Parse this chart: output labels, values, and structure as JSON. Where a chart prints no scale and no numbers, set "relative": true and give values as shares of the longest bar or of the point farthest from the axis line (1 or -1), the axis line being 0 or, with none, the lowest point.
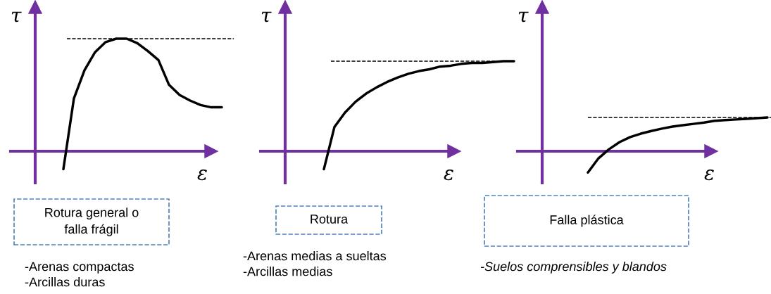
{
  "chart_data": [
    {
      "type": "line",
      "relative": true,
      "ylabel": "τ",
      "xlabel": "ε",
      "categories": [
        null,
        null,
        null,
        null,
        null,
        null,
        null,
        null,
        null,
        null,
        null,
        null,
        null,
        null,
        null,
        null
      ],
      "series": [
        {
          "color": "#000000",
          "values": [
            -0.16,
            0.47,
            0.72,
            0.88,
            0.97,
            1,
            1,
            0.96,
            0.89,
            0.81,
            0.59,
            0.5,
            0.45,
            0.41,
            0.39,
            0.39
          ]
        }
      ],
      "ref_lines": [
        {
          "axis": "y",
          "value": 1,
          "line_style": "dashed",
          "color": "#000000"
        },
        {
          "axis": "y",
          "value": 0,
          "line_style": "solid",
          "color": "#7030a0"
        }
      ],
      "annotations": [
        "Rotura general o\nfalla frágil",
        "-Arenas compactas\n-Arcillas duras"
      ]
    },
    {
      "type": "line",
      "relative": true,
      "ylabel": "τ",
      "xlabel": "ε",
      "categories": [
        null,
        null,
        null,
        null,
        null,
        null,
        null,
        null,
        null,
        null,
        null,
        null,
        null,
        null,
        null,
        null,
        null,
        null,
        null
      ],
      "series": [
        {
          "color": "#000000",
          "values": [
            -0.2,
            0.27,
            0.43,
            0.55,
            0.64,
            0.71,
            0.77,
            0.82,
            0.86,
            0.89,
            0.91,
            0.94,
            0.95,
            0.97,
            0.98,
            0.98,
            0.99,
            1,
            1
          ]
        }
      ],
      "ref_lines": [
        {
          "axis": "y",
          "value": 1,
          "line_style": "dashed",
          "color": "#000000"
        },
        {
          "axis": "y",
          "value": 0,
          "line_style": "solid",
          "color": "#7030a0"
        }
      ],
      "annotations": [
        "Rotura",
        "-Arenas medias a sueltas\n-Arcillas medias"
      ]
    },
    {
      "type": "line",
      "relative": true,
      "ylabel": "τ",
      "xlabel": "ε",
      "categories": [
        null,
        null,
        null,
        null,
        null,
        null,
        null,
        null,
        null,
        null,
        null,
        null,
        null,
        null,
        null,
        null,
        null,
        null
      ],
      "series": [
        {
          "color": "#000000",
          "values": [
            -0.63,
            -0.21,
            0.06,
            0.27,
            0.42,
            0.52,
            0.6,
            0.67,
            0.73,
            0.77,
            0.81,
            0.85,
            0.9,
            0.92,
            0.94,
            0.96,
            0.98,
            1
          ]
        }
      ],
      "ref_lines": [
        {
          "axis": "y",
          "value": 1,
          "line_style": "dashed",
          "color": "#000000"
        },
        {
          "axis": "y",
          "value": 0,
          "line_style": "solid",
          "color": "#7030a0"
        }
      ],
      "annotations": [
        "Falla plástica",
        "-Suelos comprensibles y blandos"
      ]
    }
  ]
}
